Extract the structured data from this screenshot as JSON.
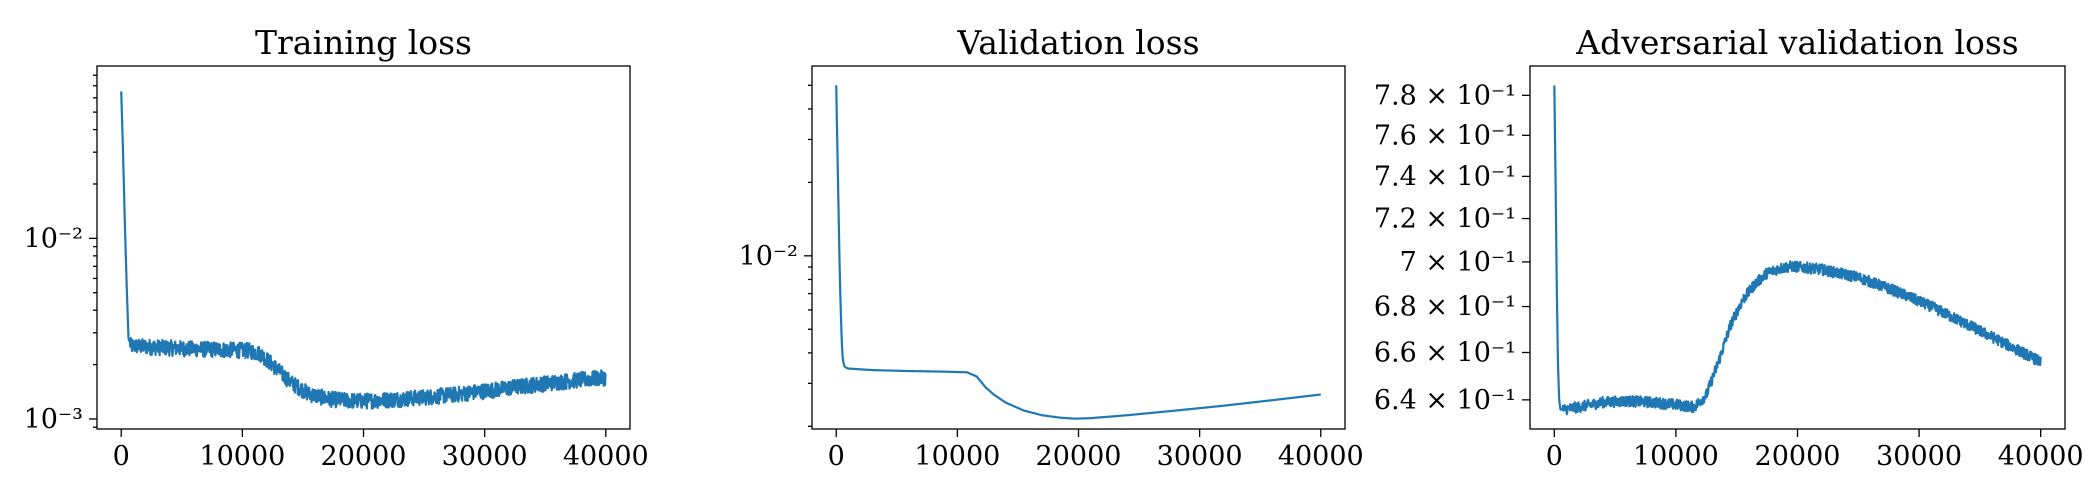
{
  "chart_data": [
    {
      "type": "line",
      "title": "Training loss",
      "yscale": "log",
      "xlim": [
        -2000,
        42000
      ],
      "ylim": [
        0.00088,
        0.09
      ],
      "xticks": [
        0,
        10000,
        20000,
        30000,
        40000
      ],
      "xtick_labels": [
        "0",
        "10000",
        "20000",
        "30000",
        "40000"
      ],
      "yticks": [
        0.01,
        0.001
      ],
      "ytick_labels": [
        "10⁻²",
        "10⁻³"
      ],
      "noisy": true,
      "noise_band": [
        0.1,
        0.08
      ],
      "series": [
        {
          "color": "#1f77b4",
          "x": [
            0,
            150,
            300,
            450,
            600,
            800,
            1500,
            3000,
            6000,
            9000,
            10500,
            11500,
            12500,
            14000,
            15500,
            17000,
            18500,
            20000,
            22000,
            25000,
            28000,
            31000,
            34000,
            37000,
            40000
          ],
          "y": [
            0.065,
            0.03,
            0.012,
            0.0055,
            0.0028,
            0.00255,
            0.00253,
            0.0025,
            0.00245,
            0.00242,
            0.0024,
            0.0023,
            0.002,
            0.0016,
            0.00138,
            0.0013,
            0.00127,
            0.00126,
            0.00128,
            0.00132,
            0.00138,
            0.00146,
            0.00155,
            0.00163,
            0.0017
          ]
        }
      ]
    },
    {
      "type": "line",
      "title": "Validation loss",
      "yscale": "log",
      "xlim": [
        -2000,
        42000
      ],
      "ylim": [
        0.00195,
        0.06
      ],
      "xticks": [
        0,
        10000,
        20000,
        30000,
        40000
      ],
      "xtick_labels": [
        "0",
        "10000",
        "20000",
        "30000",
        "40000"
      ],
      "yticks": [
        0.01
      ],
      "ytick_labels": [
        "10⁻²"
      ],
      "noisy": false,
      "series": [
        {
          "color": "#1f77b4",
          "x": [
            0,
            150,
            300,
            450,
            550,
            700,
            1000,
            3000,
            6000,
            9000,
            10800,
            11600,
            12300,
            13000,
            14000,
            15500,
            17000,
            18500,
            19700,
            21000,
            24000,
            28000,
            32000,
            36000,
            40000
          ],
          "y": [
            0.05,
            0.02,
            0.008,
            0.0045,
            0.0037,
            0.0035,
            0.00345,
            0.0034,
            0.00337,
            0.00335,
            0.00333,
            0.0032,
            0.0029,
            0.0027,
            0.0025,
            0.00232,
            0.00222,
            0.00217,
            0.00215,
            0.00216,
            0.00222,
            0.00232,
            0.00243,
            0.00256,
            0.0027
          ]
        }
      ]
    },
    {
      "type": "line",
      "title": "Adversarial validation loss",
      "yscale": "log",
      "xlim": [
        -2000,
        42000
      ],
      "ylim": [
        0.628,
        0.795
      ],
      "xticks": [
        0,
        10000,
        20000,
        30000,
        40000
      ],
      "xtick_labels": [
        "0",
        "10000",
        "20000",
        "30000",
        "40000"
      ],
      "yticks": [
        0.78,
        0.76,
        0.74,
        0.72,
        0.7,
        0.68,
        0.66,
        0.64
      ],
      "ytick_labels": [
        "7.8 × 10⁻¹",
        "7.6 × 10⁻¹",
        "7.4 × 10⁻¹",
        "7.2 × 10⁻¹",
        "7 × 10⁻¹",
        "6.8 × 10⁻¹",
        "6.6 × 10⁻¹",
        "6.4 × 10⁻¹"
      ],
      "noisy": true,
      "noise_band": [
        0.0035,
        0.0035
      ],
      "series": [
        {
          "color": "#1f77b4",
          "x": [
            0,
            100,
            200,
            300,
            400,
            500,
            800,
            2000,
            4000,
            6000,
            8000,
            10000,
            11500,
            12500,
            13500,
            14500,
            15500,
            16500,
            17500,
            18500,
            19500,
            20500,
            22000,
            25000,
            28000,
            31000,
            34000,
            37000,
            40000
          ],
          "y": [
            0.785,
            0.74,
            0.69,
            0.655,
            0.64,
            0.636,
            0.636,
            0.637,
            0.639,
            0.6395,
            0.639,
            0.638,
            0.637,
            0.642,
            0.656,
            0.672,
            0.683,
            0.69,
            0.695,
            0.697,
            0.698,
            0.6975,
            0.6965,
            0.693,
            0.687,
            0.68,
            0.672,
            0.664,
            0.656
          ]
        }
      ]
    }
  ]
}
